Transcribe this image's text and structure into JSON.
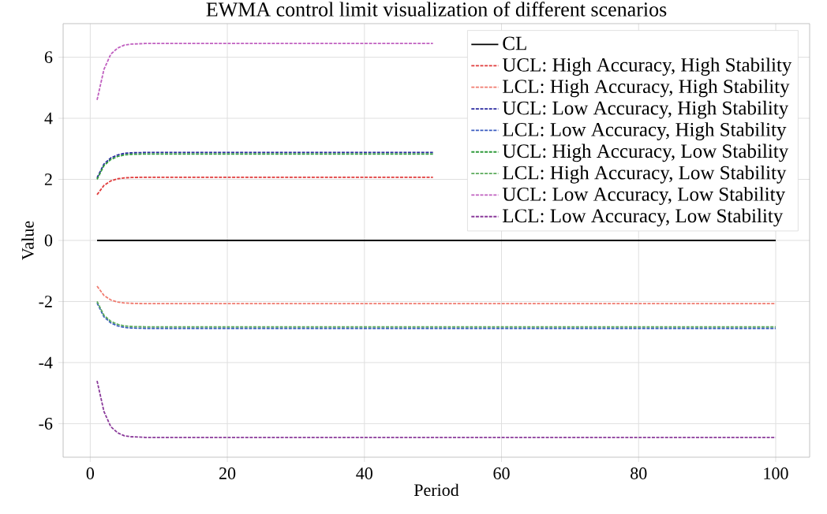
{
  "chart_data": {
    "type": "line",
    "title": "EWMA control limit visualization of different scenarios",
    "xlabel": "Period",
    "ylabel": "Value",
    "x": [
      1,
      2,
      3,
      4,
      5,
      6,
      8,
      10,
      20,
      40,
      50,
      60,
      80,
      100
    ],
    "xlim": [
      -3.95,
      104.95
    ],
    "xticks": [
      0,
      20,
      40,
      60,
      80,
      100
    ],
    "ylim": [
      -7.1,
      7.1
    ],
    "yticks": [
      -6,
      -4,
      -2,
      0,
      2,
      4,
      6
    ],
    "grid": true,
    "legend": "top right",
    "marker": "none",
    "series": [
      {
        "name": "CL",
        "color": "#000000",
        "line_style": "solid",
        "values": [
          0,
          0,
          0,
          0,
          0,
          0,
          0,
          0,
          0,
          0,
          0,
          0,
          0,
          0
        ]
      },
      {
        "name": "UCL: High Accuracy, High Stability",
        "color": "#e03c3c",
        "line_style": "dashed",
        "values": [
          1.5,
          1.8,
          1.95,
          2.02,
          2.05,
          2.06,
          2.07,
          2.07,
          2.07,
          2.07,
          2.07,
          null,
          null,
          null
        ]
      },
      {
        "name": "LCL: High Accuracy, High Stability",
        "color": "#f07a6e",
        "line_style": "dashed",
        "values": [
          -1.5,
          -1.8,
          -1.95,
          -2.02,
          -2.05,
          -2.06,
          -2.07,
          -2.07,
          -2.07,
          -2.07,
          -2.07,
          -2.07,
          -2.07,
          -2.07
        ]
      },
      {
        "name": "UCL: Low Accuracy, High Stability",
        "color": "#2a2aa0",
        "line_style": "dashed",
        "values": [
          2.05,
          2.5,
          2.7,
          2.8,
          2.85,
          2.87,
          2.88,
          2.88,
          2.88,
          2.88,
          2.88,
          null,
          null,
          null
        ]
      },
      {
        "name": "LCL: Low Accuracy, High Stability",
        "color": "#3a5cc0",
        "line_style": "dashed",
        "values": [
          -2.05,
          -2.5,
          -2.7,
          -2.8,
          -2.85,
          -2.87,
          -2.88,
          -2.88,
          -2.88,
          -2.88,
          -2.88,
          -2.88,
          -2.88,
          -2.88
        ]
      },
      {
        "name": "UCL: High Accuracy, Low Stability",
        "color": "#2e9a3a",
        "line_style": "dashed",
        "values": [
          2.0,
          2.45,
          2.65,
          2.75,
          2.8,
          2.82,
          2.83,
          2.83,
          2.83,
          2.83,
          2.83,
          null,
          null,
          null
        ]
      },
      {
        "name": "LCL: High Accuracy, Low Stability",
        "color": "#5aaa5a",
        "line_style": "dashed",
        "values": [
          -2.0,
          -2.45,
          -2.65,
          -2.75,
          -2.8,
          -2.82,
          -2.83,
          -2.83,
          -2.83,
          -2.83,
          -2.83,
          -2.83,
          -2.83,
          -2.83
        ]
      },
      {
        "name": "UCL: Low Accuracy, Low Stability",
        "color": "#c060c0",
        "line_style": "dashed",
        "values": [
          4.6,
          5.6,
          6.1,
          6.3,
          6.4,
          6.43,
          6.45,
          6.45,
          6.45,
          6.45,
          6.45,
          null,
          null,
          null
        ]
      },
      {
        "name": "LCL: Low Accuracy, Low Stability",
        "color": "#8a3a9a",
        "line_style": "dashed",
        "values": [
          -4.6,
          -5.6,
          -6.1,
          -6.3,
          -6.4,
          -6.43,
          -6.45,
          -6.45,
          -6.45,
          -6.45,
          -6.45,
          -6.45,
          -6.45,
          -6.45
        ]
      }
    ]
  }
}
